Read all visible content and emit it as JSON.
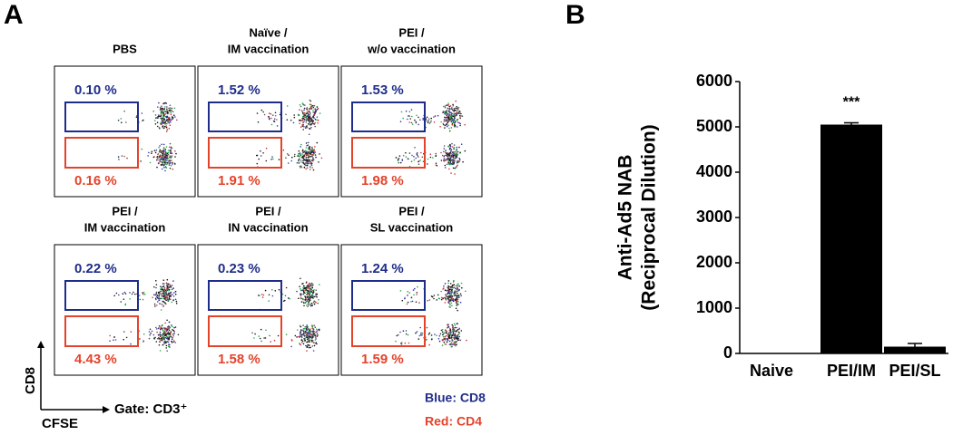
{
  "panel_a": {
    "label": "A",
    "plots": [
      {
        "title": [
          "PBS"
        ],
        "blue": "0.10 %",
        "red": "0.16 %"
      },
      {
        "title": [
          "Naïve /",
          "IM vaccination"
        ],
        "blue": "1.52 %",
        "red": "1.91 %"
      },
      {
        "title": [
          "PEI /",
          "w/o vaccination"
        ],
        "blue": "1.53 %",
        "red": "1.98 %"
      },
      {
        "title": [
          "PEI /",
          "IM vaccination"
        ],
        "blue": "0.22 %",
        "red": "4.43 %"
      },
      {
        "title": [
          "PEI /",
          "IN vaccination"
        ],
        "blue": "0.23 %",
        "red": "1.58 %"
      },
      {
        "title": [
          "PEI /",
          "SL vaccination"
        ],
        "blue": "1.24 %",
        "red": "1.59 %"
      }
    ],
    "y_axis": "CD8",
    "x_axis": "CFSE",
    "gate": "Gate: CD3⁺",
    "legend": [
      "Blue: CD8",
      "Red: CD4"
    ]
  },
  "chart_data": {
    "type": "bar",
    "panel_label": "B",
    "ylabel": [
      "Anti-Ad5 NAB",
      "(Reciprocal Dilution)"
    ],
    "categories": [
      "Naive",
      "PEI/IM",
      "PEI/SL"
    ],
    "values": [
      0,
      5050,
      150
    ],
    "errors": [
      0,
      40,
      70
    ],
    "color": "#000000",
    "annotation": "***",
    "ylim": [
      0,
      6000
    ],
    "yticks": [
      0,
      1000,
      2000,
      3000,
      4000,
      5000,
      6000
    ]
  }
}
